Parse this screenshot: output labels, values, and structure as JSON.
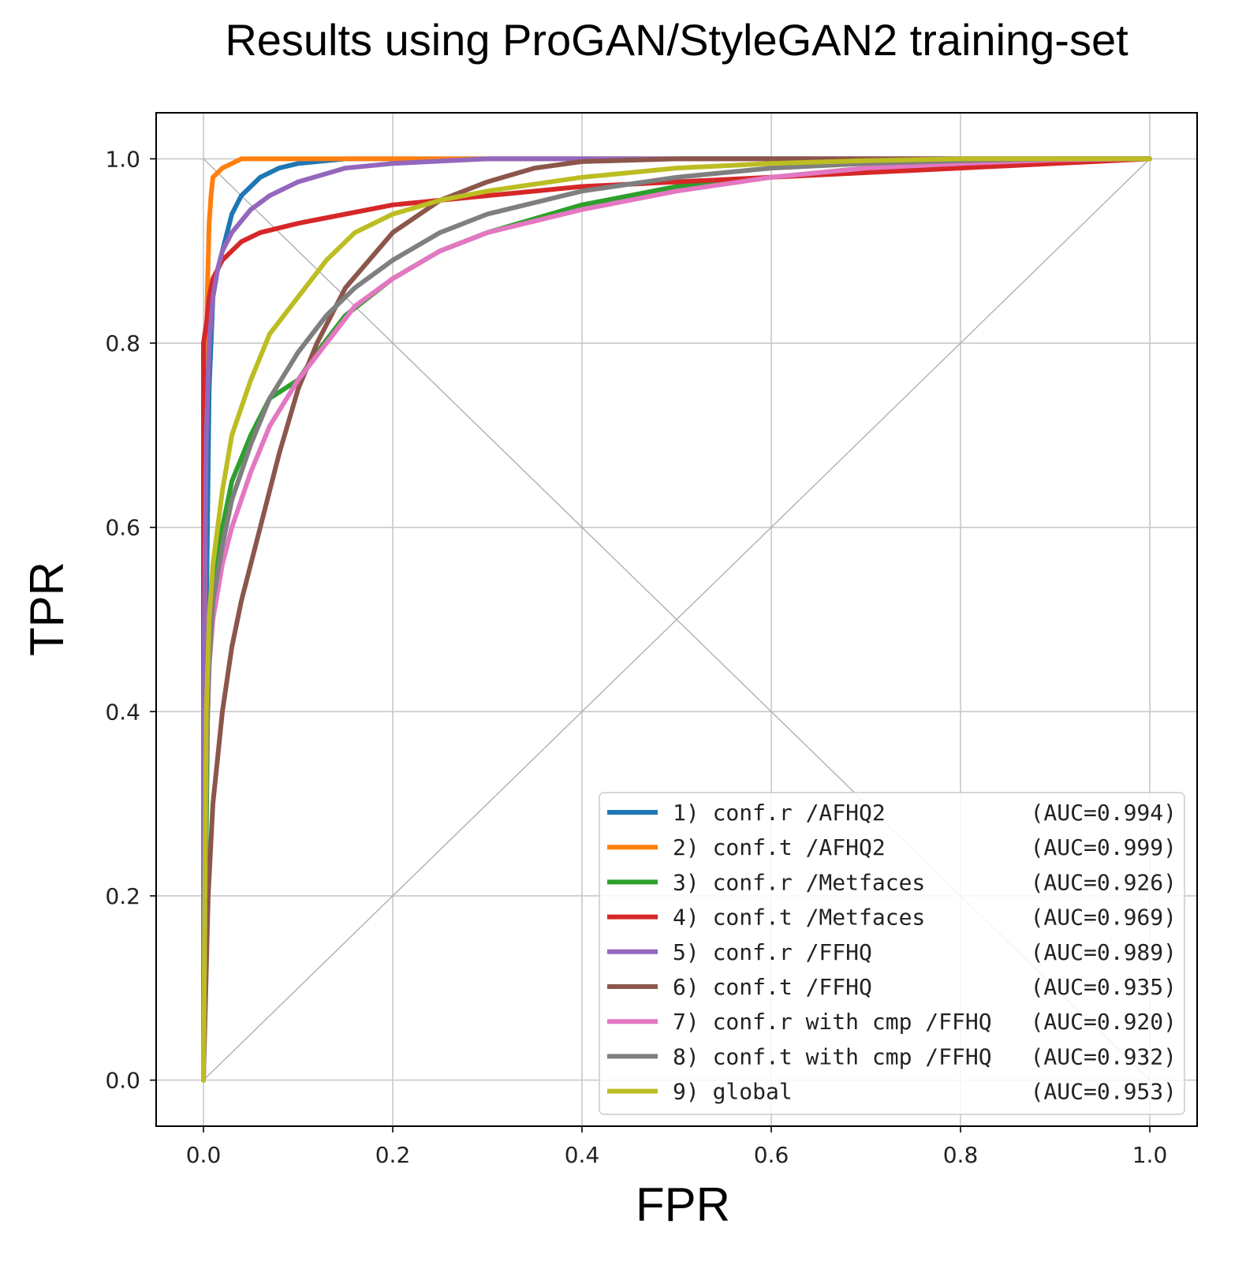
{
  "chart_data": {
    "type": "line",
    "title": "Results using ProGAN/StyleGAN2 training-set",
    "xlabel": "FPR",
    "ylabel": "TPR",
    "xlim": [
      -0.05,
      1.05
    ],
    "ylim": [
      -0.05,
      1.05
    ],
    "xticks": [
      "0.0",
      "0.2",
      "0.4",
      "0.6",
      "0.8",
      "1.0"
    ],
    "yticks": [
      "0.0",
      "0.2",
      "0.4",
      "0.6",
      "0.8",
      "1.0"
    ],
    "grid": true,
    "legend_position": "lower-right",
    "reference_lines": [
      "diagonal (0,0)-(1,1)",
      "diagonal (0,1)-(1,0)"
    ],
    "series": [
      {
        "name": "1) conf.r /AFHQ2",
        "auc_label": "(AUC=0.994)",
        "color": "#1f77b4",
        "x": [
          0,
          0.003,
          0.006,
          0.01,
          0.015,
          0.02,
          0.03,
          0.04,
          0.06,
          0.08,
          0.1,
          0.15,
          0.3,
          1.0
        ],
        "y": [
          0,
          0.5,
          0.75,
          0.85,
          0.88,
          0.9,
          0.94,
          0.96,
          0.98,
          0.99,
          0.995,
          1.0,
          1.0,
          1.0
        ]
      },
      {
        "name": "2) conf.t /AFHQ2",
        "auc_label": "(AUC=0.999)",
        "color": "#ff7f0e",
        "x": [
          0,
          0.002,
          0.004,
          0.006,
          0.008,
          0.01,
          0.02,
          0.03,
          0.04,
          0.05,
          1.0
        ],
        "y": [
          0,
          0.7,
          0.85,
          0.93,
          0.96,
          0.98,
          0.99,
          0.995,
          1.0,
          1.0,
          1.0
        ]
      },
      {
        "name": "3) conf.r /Metfaces",
        "auc_label": "(AUC=0.926)",
        "color": "#2ca02c",
        "x": [
          0,
          0.005,
          0.01,
          0.02,
          0.03,
          0.05,
          0.07,
          0.1,
          0.12,
          0.15,
          0.2,
          0.25,
          0.3,
          0.4,
          0.5,
          0.6,
          0.7,
          0.8,
          0.9,
          1.0
        ],
        "y": [
          0,
          0.45,
          0.52,
          0.6,
          0.65,
          0.7,
          0.74,
          0.76,
          0.79,
          0.83,
          0.87,
          0.9,
          0.92,
          0.95,
          0.97,
          0.98,
          0.99,
          0.995,
          0.999,
          1.0
        ]
      },
      {
        "name": "4) conf.t /Metfaces",
        "auc_label": "(AUC=0.969)",
        "color": "#d62728",
        "x": [
          0,
          0.0,
          0.003,
          0.006,
          0.01,
          0.02,
          0.04,
          0.06,
          0.1,
          0.15,
          0.2,
          0.3,
          0.4,
          0.5,
          0.6,
          0.7,
          0.8,
          0.9,
          1.0
        ],
        "y": [
          0,
          0.8,
          0.82,
          0.85,
          0.87,
          0.89,
          0.91,
          0.92,
          0.93,
          0.94,
          0.95,
          0.96,
          0.97,
          0.975,
          0.98,
          0.985,
          0.99,
          0.995,
          1.0
        ]
      },
      {
        "name": "5) conf.r /FFHQ",
        "auc_label": "(AUC=0.989)",
        "color": "#9467bd",
        "x": [
          0,
          0.0,
          0.003,
          0.006,
          0.01,
          0.015,
          0.02,
          0.03,
          0.05,
          0.07,
          0.1,
          0.15,
          0.2,
          0.3,
          0.4,
          1.0
        ],
        "y": [
          0,
          0.4,
          0.7,
          0.8,
          0.85,
          0.88,
          0.9,
          0.92,
          0.945,
          0.96,
          0.975,
          0.99,
          0.995,
          1.0,
          1.0,
          1.0
        ]
      },
      {
        "name": "6) conf.t /FFHQ",
        "auc_label": "(AUC=0.935)",
        "color": "#8c564b",
        "x": [
          0,
          0.005,
          0.01,
          0.02,
          0.03,
          0.04,
          0.06,
          0.08,
          0.1,
          0.12,
          0.15,
          0.2,
          0.25,
          0.3,
          0.35,
          0.4,
          0.5,
          1.0
        ],
        "y": [
          0,
          0.2,
          0.3,
          0.4,
          0.47,
          0.52,
          0.6,
          0.68,
          0.75,
          0.8,
          0.86,
          0.92,
          0.955,
          0.975,
          0.99,
          0.997,
          1.0,
          1.0
        ]
      },
      {
        "name": "7) conf.r with cmp /FFHQ",
        "auc_label": "(AUC=0.920)",
        "color": "#e377c2",
        "x": [
          0,
          0.003,
          0.006,
          0.01,
          0.02,
          0.03,
          0.05,
          0.07,
          0.1,
          0.13,
          0.16,
          0.2,
          0.25,
          0.3,
          0.4,
          0.5,
          0.6,
          0.7,
          0.8,
          0.9,
          1.0
        ],
        "y": [
          0,
          0.35,
          0.45,
          0.5,
          0.56,
          0.6,
          0.66,
          0.71,
          0.76,
          0.8,
          0.84,
          0.87,
          0.9,
          0.92,
          0.945,
          0.965,
          0.98,
          0.99,
          0.995,
          0.999,
          1.0
        ]
      },
      {
        "name": "8) conf.t with cmp /FFHQ",
        "auc_label": "(AUC=0.932)",
        "color": "#7f7f7f",
        "x": [
          0,
          0.003,
          0.006,
          0.01,
          0.02,
          0.03,
          0.05,
          0.07,
          0.1,
          0.13,
          0.16,
          0.2,
          0.25,
          0.3,
          0.4,
          0.5,
          0.6,
          0.7,
          0.8,
          0.9,
          1.0
        ],
        "y": [
          0,
          0.35,
          0.45,
          0.52,
          0.58,
          0.63,
          0.69,
          0.74,
          0.79,
          0.83,
          0.86,
          0.89,
          0.92,
          0.94,
          0.965,
          0.98,
          0.99,
          0.995,
          0.998,
          1.0,
          1.0
        ]
      },
      {
        "name": "9) global",
        "auc_label": "(AUC=0.953)",
        "color": "#bcbd22",
        "x": [
          0,
          0.003,
          0.006,
          0.01,
          0.02,
          0.03,
          0.05,
          0.07,
          0.1,
          0.13,
          0.16,
          0.2,
          0.25,
          0.3,
          0.4,
          0.5,
          0.6,
          0.7,
          0.8,
          1.0
        ],
        "y": [
          0,
          0.4,
          0.5,
          0.56,
          0.64,
          0.7,
          0.76,
          0.81,
          0.85,
          0.89,
          0.92,
          0.94,
          0.955,
          0.965,
          0.98,
          0.99,
          0.995,
          0.998,
          1.0,
          1.0
        ]
      }
    ]
  }
}
